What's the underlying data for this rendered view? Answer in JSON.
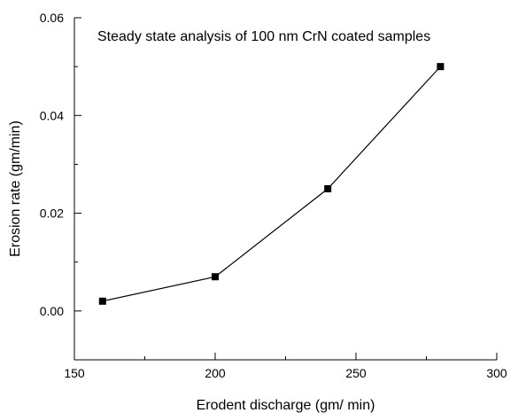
{
  "chart_data": {
    "type": "line",
    "title": "",
    "annotation": "Steady state analysis of 100 nm CrN  coated samples",
    "xlabel": "Erodent discharge (gm/ min)",
    "ylabel": "Erosion rate (gm/min)",
    "xlim": [
      150,
      300
    ],
    "ylim": [
      -0.01,
      0.06
    ],
    "xticks": [
      150,
      200,
      250,
      300
    ],
    "xtick_labels": [
      "150",
      "200",
      "250",
      "300"
    ],
    "yticks": [
      0.0,
      0.02,
      0.04,
      0.06
    ],
    "ytick_labels": [
      "0.00",
      "0.02",
      "0.04",
      "0.06"
    ],
    "grid": false,
    "marker": "square",
    "line_color": "#000000",
    "series": [
      {
        "x": [
          160,
          200,
          240,
          280
        ],
        "y": [
          0.002,
          0.007,
          0.025,
          0.05
        ]
      }
    ]
  }
}
